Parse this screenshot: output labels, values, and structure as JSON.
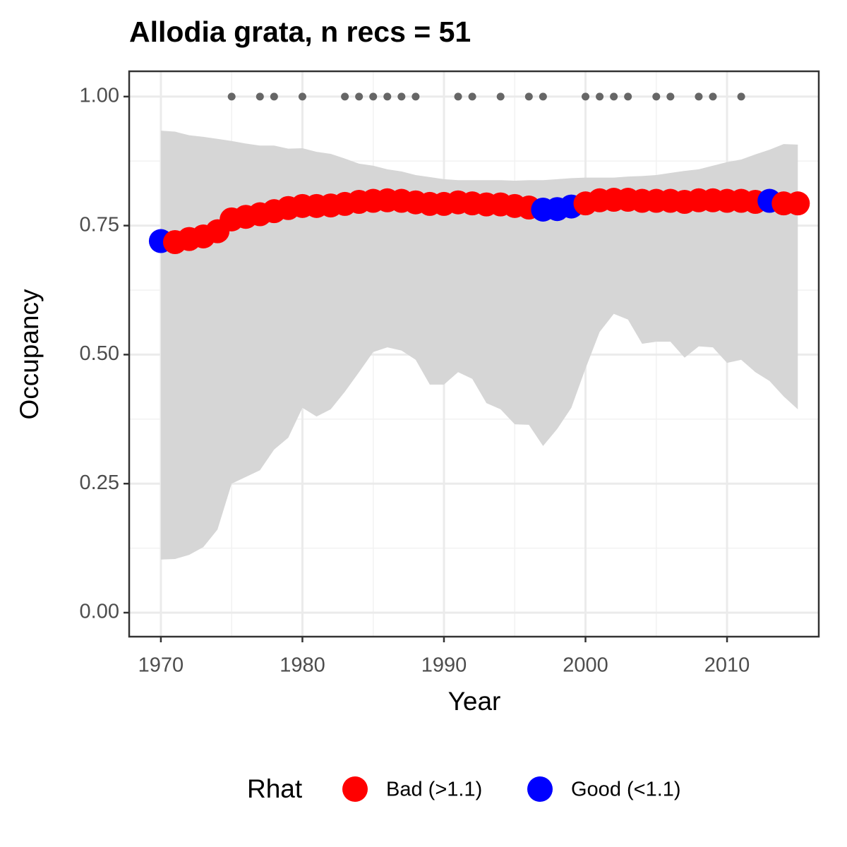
{
  "chart_data": {
    "type": "occupancy",
    "title": "Allodia grata, n recs = 51",
    "x_label": "Year",
    "y_label": "Occupancy",
    "legend_title": "Rhat",
    "rhat_levels": [
      {
        "name": "Bad (>1.1)",
        "color": "#ff0000"
      },
      {
        "name": "Good (<1.1)",
        "color": "#0000ff"
      }
    ],
    "x": [
      1970,
      1971,
      1972,
      1973,
      1974,
      1975,
      1976,
      1977,
      1978,
      1979,
      1980,
      1981,
      1982,
      1983,
      1984,
      1985,
      1986,
      1987,
      1988,
      1989,
      1990,
      1991,
      1992,
      1993,
      1994,
      1995,
      1996,
      1997,
      1998,
      1999,
      2000,
      2001,
      2002,
      2003,
      2004,
      2005,
      2006,
      2007,
      2008,
      2009,
      2010,
      2011,
      2012,
      2013,
      2014,
      2015
    ],
    "values": [
      0.72,
      0.718,
      0.724,
      0.729,
      0.739,
      0.762,
      0.767,
      0.772,
      0.778,
      0.784,
      0.788,
      0.788,
      0.789,
      0.792,
      0.796,
      0.798,
      0.799,
      0.798,
      0.795,
      0.792,
      0.792,
      0.795,
      0.793,
      0.791,
      0.791,
      0.788,
      0.785,
      0.781,
      0.782,
      0.787,
      0.793,
      0.799,
      0.8,
      0.8,
      0.798,
      0.798,
      0.798,
      0.796,
      0.799,
      0.799,
      0.798,
      0.798,
      0.796,
      0.798,
      0.793,
      0.793
    ],
    "rhat": [
      "Good (<1.1)",
      "Bad (>1.1)",
      "Bad (>1.1)",
      "Bad (>1.1)",
      "Bad (>1.1)",
      "Bad (>1.1)",
      "Bad (>1.1)",
      "Bad (>1.1)",
      "Bad (>1.1)",
      "Bad (>1.1)",
      "Bad (>1.1)",
      "Bad (>1.1)",
      "Bad (>1.1)",
      "Bad (>1.1)",
      "Bad (>1.1)",
      "Bad (>1.1)",
      "Bad (>1.1)",
      "Bad (>1.1)",
      "Bad (>1.1)",
      "Bad (>1.1)",
      "Bad (>1.1)",
      "Bad (>1.1)",
      "Bad (>1.1)",
      "Bad (>1.1)",
      "Bad (>1.1)",
      "Bad (>1.1)",
      "Bad (>1.1)",
      "Good (<1.1)",
      "Good (<1.1)",
      "Good (<1.1)",
      "Bad (>1.1)",
      "Bad (>1.1)",
      "Bad (>1.1)",
      "Bad (>1.1)",
      "Bad (>1.1)",
      "Bad (>1.1)",
      "Bad (>1.1)",
      "Bad (>1.1)",
      "Bad (>1.1)",
      "Bad (>1.1)",
      "Bad (>1.1)",
      "Bad (>1.1)",
      "Bad (>1.1)",
      "Good (<1.1)",
      "Bad (>1.1)",
      "Bad (>1.1)"
    ],
    "lower": [
      0.103,
      0.104,
      0.112,
      0.127,
      0.161,
      0.25,
      0.263,
      0.276,
      0.316,
      0.339,
      0.397,
      0.38,
      0.394,
      0.428,
      0.466,
      0.505,
      0.514,
      0.508,
      0.49,
      0.442,
      0.442,
      0.466,
      0.453,
      0.406,
      0.394,
      0.365,
      0.364,
      0.323,
      0.356,
      0.397,
      0.473,
      0.544,
      0.579,
      0.568,
      0.521,
      0.525,
      0.525,
      0.494,
      0.516,
      0.514,
      0.484,
      0.49,
      0.466,
      0.449,
      0.419,
      0.394
    ],
    "upper": [
      0.934,
      0.932,
      0.925,
      0.922,
      0.918,
      0.914,
      0.909,
      0.905,
      0.905,
      0.899,
      0.9,
      0.893,
      0.889,
      0.88,
      0.87,
      0.866,
      0.859,
      0.855,
      0.848,
      0.844,
      0.84,
      0.838,
      0.838,
      0.838,
      0.838,
      0.837,
      0.838,
      0.838,
      0.84,
      0.842,
      0.843,
      0.843,
      0.843,
      0.845,
      0.846,
      0.848,
      0.852,
      0.856,
      0.859,
      0.866,
      0.873,
      0.878,
      0.888,
      0.897,
      0.908,
      0.907
    ],
    "band_color": "#d6d6d6",
    "records": {
      "color": "#666666",
      "x": [
        1975,
        1977,
        1978,
        1980,
        1983,
        1984,
        1985,
        1986,
        1987,
        1988,
        1991,
        1992,
        1994,
        1996,
        1997,
        2000,
        2001,
        2002,
        2003,
        2005,
        2006,
        2008,
        2009,
        2011
      ],
      "values": [
        1,
        1,
        1,
        1,
        1,
        1,
        1,
        1,
        1,
        1,
        1,
        1,
        1,
        1,
        1,
        1,
        1,
        1,
        1,
        1,
        1,
        1,
        1,
        1
      ]
    },
    "xlim": [
      1967.76,
      2016.48
    ],
    "ylim": [
      -0.0465,
      1.049
    ],
    "xticks": [
      1970,
      1980,
      1990,
      2000,
      2010
    ],
    "yticks": [
      {
        "value": 0,
        "label": "0.00"
      },
      {
        "value": 0.25,
        "label": "0.25"
      },
      {
        "value": 0.5,
        "label": "0.50"
      },
      {
        "value": 0.75,
        "label": "0.75"
      },
      {
        "value": 1,
        "label": "1.00"
      }
    ],
    "grid": true
  }
}
